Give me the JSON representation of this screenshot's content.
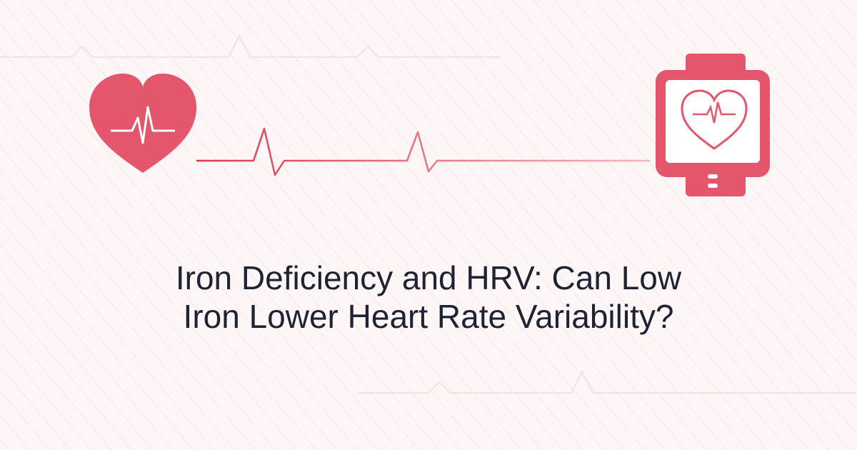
{
  "title": {
    "lines": [
      "Iron Deficiency and HRV: Can Low",
      "Iron Lower Heart Rate Variability?"
    ]
  }
}
